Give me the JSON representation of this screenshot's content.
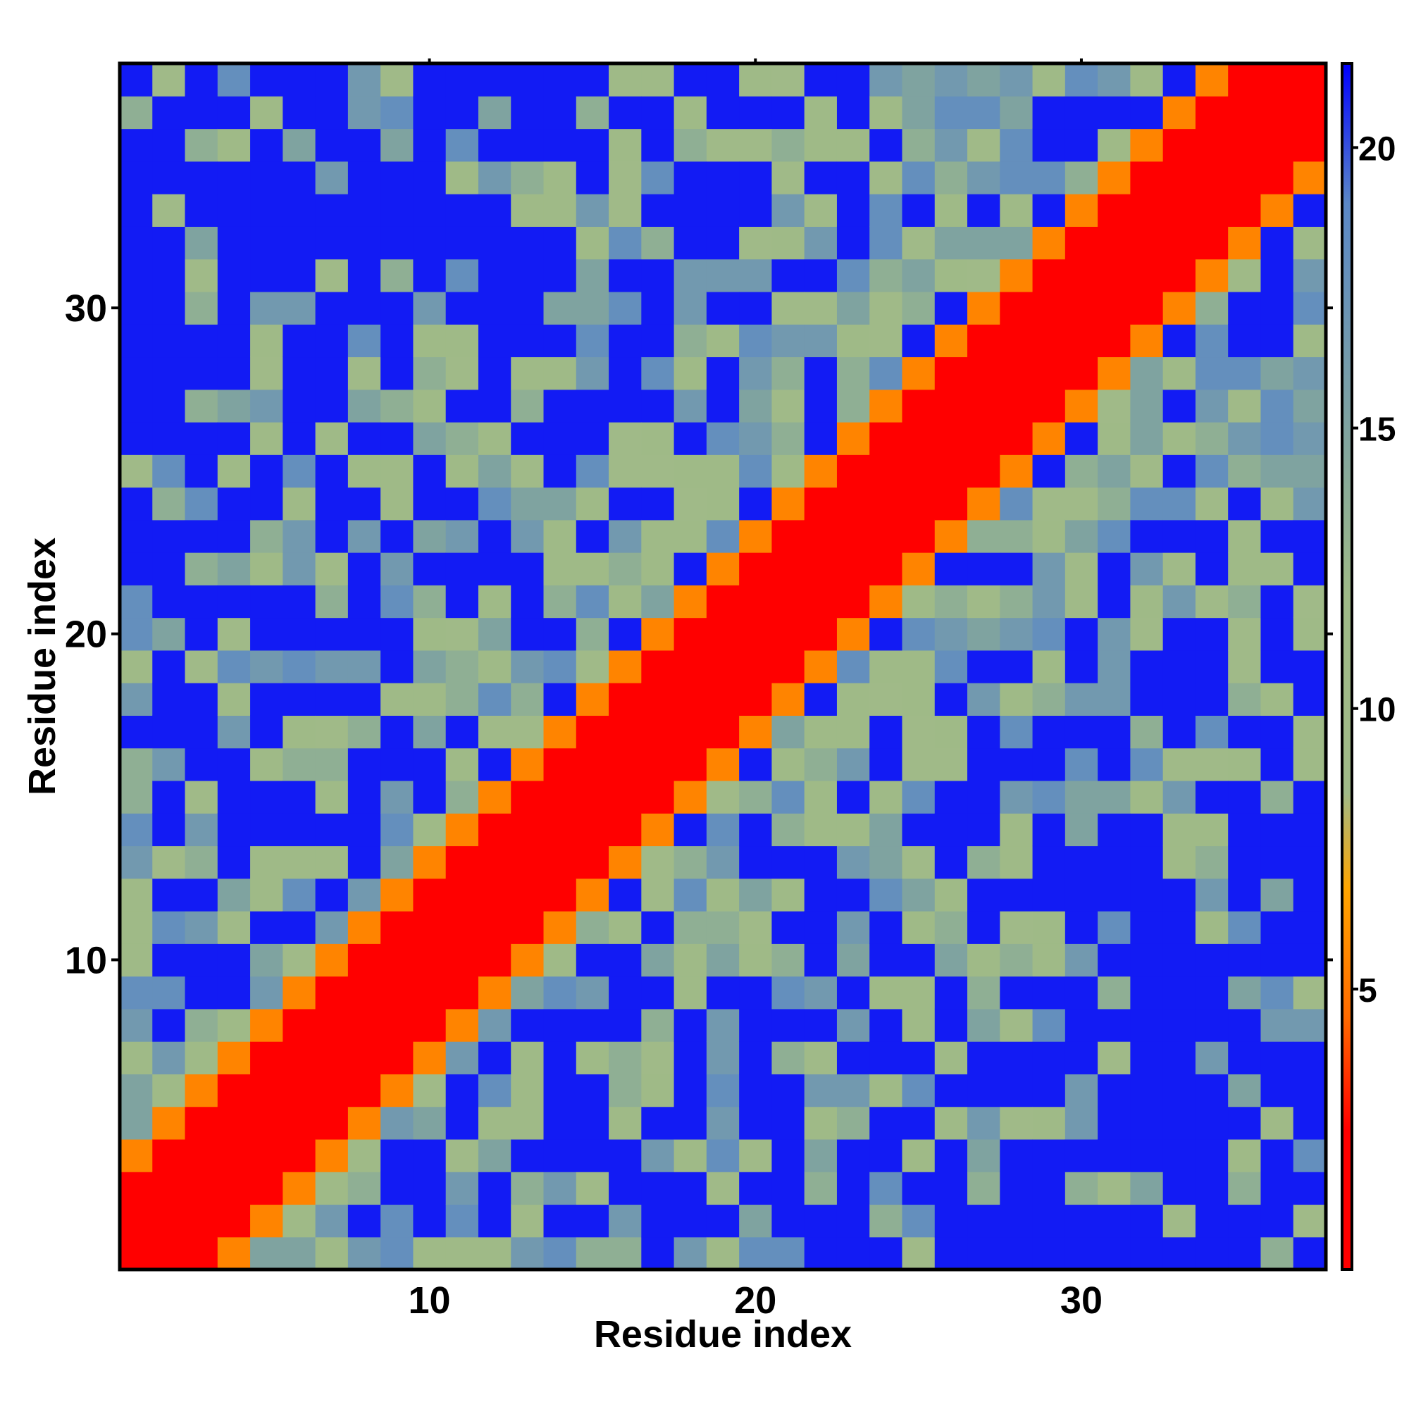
{
  "chart_data": {
    "type": "heatmap",
    "title": "",
    "xlabel": "Residue index",
    "ylabel": "Residue index",
    "n_residues": 37,
    "x_ticks": [
      10,
      20,
      30
    ],
    "y_ticks": [
      10,
      20,
      30
    ],
    "colorbar": {
      "ticks": [
        5,
        10,
        15,
        20
      ],
      "range": [
        0,
        21.5
      ],
      "stops": [
        {
          "value": 0,
          "color": "#ff0000"
        },
        {
          "value": 2.5,
          "color": "#ff0000"
        },
        {
          "value": 4.5,
          "color": "#ff6a00"
        },
        {
          "value": 6.8,
          "color": "#ffa500"
        },
        {
          "value": 8.5,
          "color": "#a0ba88"
        },
        {
          "value": 12,
          "color": "#9fba87"
        },
        {
          "value": 15,
          "color": "#7fa3a0"
        },
        {
          "value": 19,
          "color": "#5b88c7"
        },
        {
          "value": 21.5,
          "color": "#0000ff"
        }
      ]
    },
    "diagonal_bands": [
      {
        "max_offset": 2,
        "value": 1.5
      },
      {
        "max_offset": 3,
        "value": 5.5
      }
    ],
    "pattern_seed": 37,
    "description_values_far": [
      9,
      10.5,
      12,
      13.5,
      15,
      16.5,
      18,
      21
    ]
  }
}
